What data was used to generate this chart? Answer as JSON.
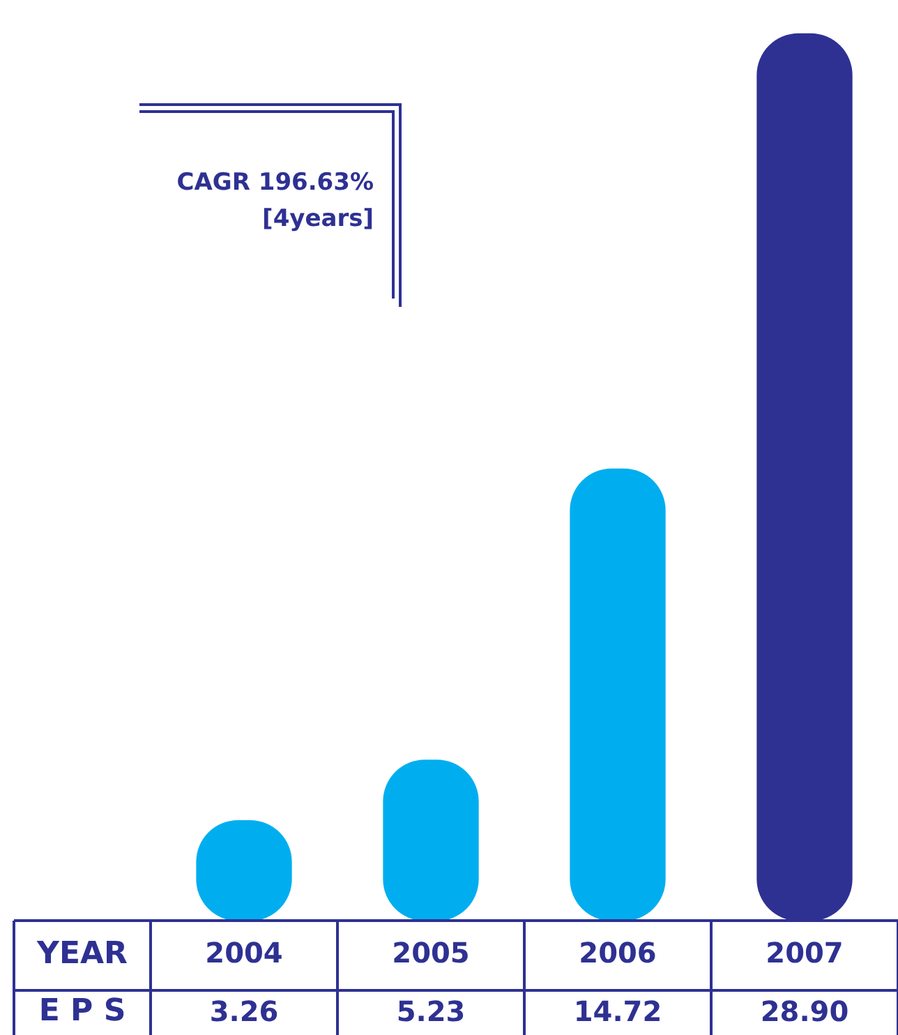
{
  "chart_data": {
    "type": "bar",
    "xlabel": "YEAR",
    "categories": [
      "2004",
      "2005",
      "2006",
      "2007"
    ],
    "values": [
      3.26,
      5.23,
      14.72,
      28.9
    ],
    "value_labels": [
      "3.26",
      "5.23",
      "14.72",
      "28.90"
    ],
    "colors": [
      "#00aeef",
      "#00aeef",
      "#00aeef",
      "#2e3192"
    ],
    "annotations": [
      "CAGR 196.63%",
      "[4years]",
      "E P S"
    ],
    "data_labels": true
  }
}
